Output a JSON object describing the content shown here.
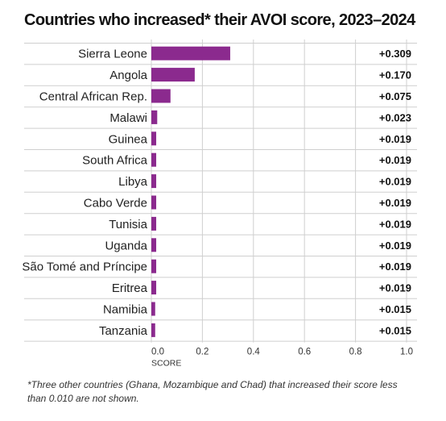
{
  "chart_data": {
    "type": "bar",
    "orientation": "horizontal",
    "title": "Countries who increased* their AVOI score, 2023–2024",
    "xlabel": "SCORE",
    "ylabel": "",
    "xlim": [
      0,
      1.0
    ],
    "xticks": [
      "0.0",
      "0.2",
      "0.4",
      "0.6",
      "0.8",
      "1.0"
    ],
    "grid": true,
    "bar_color": "#8b2a8e",
    "categories": [
      "Sierra Leone",
      "Angola",
      "Central African Rep.",
      "Malawi",
      "Guinea",
      "South Africa",
      "Libya",
      "Cabo Verde",
      "Tunisia",
      "Uganda",
      "São Tomé and Príncipe",
      "Eritrea",
      "Namibia",
      "Tanzania"
    ],
    "values": [
      0.309,
      0.17,
      0.075,
      0.023,
      0.019,
      0.019,
      0.019,
      0.019,
      0.019,
      0.019,
      0.019,
      0.019,
      0.015,
      0.015
    ],
    "value_labels": [
      "+0.309",
      "+0.170",
      "+0.075",
      "+0.023",
      "+0.019",
      "+0.019",
      "+0.019",
      "+0.019",
      "+0.019",
      "+0.019",
      "+0.019",
      "+0.019",
      "+0.015",
      "+0.015"
    ]
  },
  "footnote": "*Three other countries  (Ghana, Mozambique and Chad) that increased their score less than 0.010 are not shown."
}
